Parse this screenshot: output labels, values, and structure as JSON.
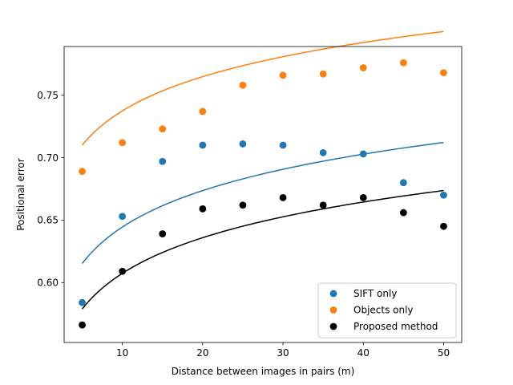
{
  "chart_data": {
    "type": "scatter",
    "title": "",
    "xlabel": "Distance between images in pairs (m)",
    "ylabel": "Positional error",
    "xlim": [
      2.75,
      52.25
    ],
    "ylim": [
      0.552,
      0.789
    ],
    "xticks": [
      10,
      20,
      30,
      40,
      50
    ],
    "yticks": [
      0.6,
      0.65,
      0.7,
      0.75
    ],
    "xtick_labels": [
      "10",
      "20",
      "30",
      "40",
      "50"
    ],
    "ytick_labels": [
      "0.60",
      "0.65",
      "0.70",
      "0.75"
    ],
    "grid": false,
    "legend_position": "lower-right",
    "series": [
      {
        "name": "SIFT only",
        "color": "#1f77b4",
        "x": [
          5,
          10,
          15,
          20,
          25,
          30,
          35,
          40,
          45,
          50
        ],
        "values": [
          0.584,
          0.653,
          0.697,
          0.71,
          0.711,
          0.71,
          0.704,
          0.703,
          0.68,
          0.67
        ],
        "fit": {
          "a": 0.5475,
          "b": 0.0421
        }
      },
      {
        "name": "Objects only",
        "color": "#ff7f0e",
        "x": [
          5,
          10,
          15,
          20,
          25,
          30,
          35,
          40,
          45,
          50
        ],
        "values": [
          0.689,
          0.712,
          0.723,
          0.737,
          0.758,
          0.766,
          0.767,
          0.772,
          0.776,
          0.768
        ],
        "fit": {
          "a": 0.6465,
          "b": 0.0395
        }
      },
      {
        "name": "Proposed method",
        "color": "#000000",
        "x": [
          5,
          10,
          15,
          20,
          25,
          30,
          35,
          40,
          45,
          50
        ],
        "values": [
          0.566,
          0.609,
          0.639,
          0.659,
          0.662,
          0.668,
          0.662,
          0.668,
          0.656,
          0.645
        ],
        "fit": {
          "a": 0.5125,
          "b": 0.0412
        }
      }
    ]
  }
}
